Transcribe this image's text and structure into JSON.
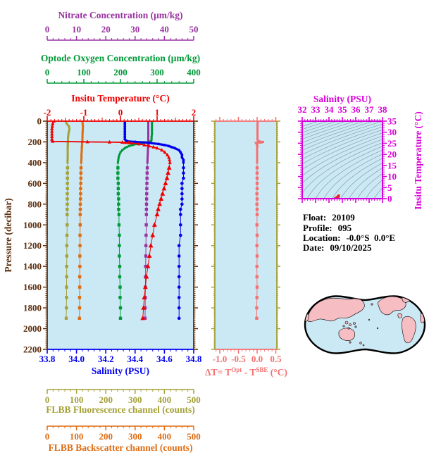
{
  "colors": {
    "background": "#FFFFFF",
    "plot_bg": "#CBE9F5",
    "nitrate": "#9933A0",
    "oxygen": "#009938",
    "temperature": "#EE0000",
    "pressure": "#5C2E0E",
    "salinity": "#0000EE",
    "fluorescence": "#A4A138",
    "backscatter": "#DE6C12",
    "delta_t": "#F57070",
    "ts_frame": "#D800D8",
    "ts_points": "#E02828",
    "contour": "#8A9CA8",
    "map_land": "#F6BDC3",
    "map_outline": "#000000",
    "info_text": "#000000"
  },
  "axes": {
    "nitrate": {
      "title": "Nitrate Concentration (μm/kg)",
      "min": 0,
      "max": 50,
      "ticks": [
        0,
        10,
        20,
        30,
        40,
        50
      ]
    },
    "oxygen": {
      "title": "Optode Oxygen Concentration (μm/kg)",
      "min": 0,
      "max": 400,
      "ticks": [
        0,
        100,
        200,
        300,
        400
      ]
    },
    "temperature": {
      "title": "Insitu Temperature (°C)",
      "min": -2,
      "max": 2,
      "ticks": [
        -2,
        -1,
        0,
        1,
        2
      ]
    },
    "pressure": {
      "title": "Pressure (decibar)",
      "min": 0,
      "max": 2200,
      "ticks": [
        0,
        200,
        400,
        600,
        800,
        1000,
        1200,
        1400,
        1600,
        1800,
        2000,
        2200
      ]
    },
    "salinity": {
      "title": "Salinity (PSU)",
      "min": 33.8,
      "max": 34.8,
      "ticks": [
        33.8,
        34.0,
        34.2,
        34.4,
        34.6,
        34.8
      ],
      "tick_labels": [
        "33.8",
        "34.0",
        "34.2",
        "34.4",
        "34.6",
        "34.8"
      ]
    },
    "fluorescence": {
      "title": "FLBB Fluorescence channel (counts)",
      "min": 0,
      "max": 500,
      "ticks": [
        0,
        100,
        200,
        300,
        400,
        500
      ]
    },
    "backscatter": {
      "title": "FLBB Backscatter channel (counts)",
      "min": 0,
      "max": 500,
      "ticks": [
        0,
        100,
        200,
        300,
        400,
        500
      ]
    },
    "delta_t": {
      "label_parts": [
        {
          "t": "ΔT= T"
        },
        {
          "t": "Opt",
          "sup": true
        },
        {
          "t": " - T"
        },
        {
          "t": "SBE",
          "sup": true
        },
        {
          "t": " (°C)"
        }
      ],
      "min": -1.132,
      "max": 0.528,
      "ticks": [
        -1.0,
        -0.5,
        0.0,
        0.5
      ],
      "tick_labels": [
        "-1.0",
        "-0.5",
        "0.0",
        "0.5"
      ]
    },
    "ts": {
      "title": "Salinity (PSU)",
      "ylabel": "Insitu Temperature (°C)",
      "s_min": 32,
      "s_max": 38,
      "s_ticks": [
        32,
        33,
        34,
        35,
        36,
        37,
        38
      ],
      "t_min": 0,
      "t_max": 35,
      "t_ticks": [
        0,
        5,
        10,
        15,
        20,
        25,
        30,
        35
      ]
    }
  },
  "info": {
    "rows": [
      {
        "label": "Float:",
        "value": "20109"
      },
      {
        "label": "Profile:",
        "value": "095"
      },
      {
        "label": "Location:",
        "value": "-0.0°S  0.0°E"
      },
      {
        "label": "Date:",
        "value": "09/10/2025"
      }
    ]
  },
  "chart_data": {
    "type": "line",
    "y_axis": {
      "label": "Pressure (decibar)",
      "range": [
        0,
        2200
      ],
      "direction": "downward"
    },
    "series": [
      {
        "name": "Insitu Temperature",
        "units": "°C",
        "x_axis": "temperature",
        "color": "#EE0000",
        "marker": "triangle",
        "p": [
          0,
          25,
          50,
          75,
          100,
          125,
          150,
          175,
          190,
          195,
          200,
          202,
          204,
          206,
          208,
          210,
          220,
          230,
          240,
          250,
          260,
          280,
          300,
          325,
          350,
          375,
          400,
          450,
          500,
          550,
          600,
          650,
          700,
          750,
          800,
          850,
          900,
          1000,
          1100,
          1200,
          1300,
          1400,
          1500,
          1600,
          1700,
          1800,
          1900
        ],
        "v": [
          -1.82,
          -1.85,
          -1.86,
          -1.87,
          -1.87,
          -1.87,
          -1.87,
          -1.87,
          -1.86,
          -1.85,
          -0.9,
          -0.3,
          0.05,
          0.13,
          0.22,
          0.3,
          0.5,
          0.65,
          0.78,
          0.9,
          1.0,
          1.13,
          1.21,
          1.28,
          1.32,
          1.34,
          1.35,
          1.33,
          1.3,
          1.27,
          1.23,
          1.19,
          1.15,
          1.11,
          1.07,
          1.03,
          1.0,
          0.93,
          0.88,
          0.83,
          0.79,
          0.75,
          0.71,
          0.68,
          0.65,
          0.63,
          0.61
        ]
      },
      {
        "name": "Salinity",
        "units": "PSU",
        "x_axis": "salinity",
        "color": "#0000EE",
        "marker": "circle",
        "p": [
          0,
          25,
          50,
          75,
          100,
          125,
          150,
          175,
          190,
          195,
          200,
          205,
          210,
          220,
          230,
          240,
          250,
          260,
          280,
          300,
          325,
          350,
          375,
          400,
          450,
          500,
          550,
          600,
          650,
          700,
          750,
          800,
          850,
          900,
          1000,
          1100,
          1200,
          1300,
          1400,
          1500,
          1600,
          1700,
          1800,
          1900
        ],
        "v": [
          34.33,
          34.33,
          34.33,
          34.33,
          34.33,
          34.33,
          34.33,
          34.33,
          34.34,
          34.35,
          34.4,
          34.46,
          34.5,
          34.56,
          34.6,
          34.63,
          34.65,
          34.67,
          34.7,
          34.71,
          34.72,
          34.72,
          34.73,
          34.73,
          34.73,
          34.73,
          34.73,
          34.72,
          34.72,
          34.72,
          34.72,
          34.72,
          34.71,
          34.71,
          34.71,
          34.71,
          34.7,
          34.7,
          34.7,
          34.7,
          34.7,
          34.7,
          34.7,
          34.7
        ]
      },
      {
        "name": "Optode Oxygen Concentration",
        "units": "μm/kg",
        "x_axis": "oxygen",
        "color": "#009938",
        "marker": "square",
        "p": [
          0,
          25,
          50,
          75,
          100,
          125,
          150,
          175,
          190,
          195,
          200,
          205,
          210,
          220,
          230,
          240,
          250,
          260,
          280,
          300,
          325,
          350,
          375,
          400,
          450,
          500,
          550,
          600,
          650,
          700,
          750,
          800,
          850,
          900,
          1000,
          1100,
          1200,
          1300,
          1400,
          1500,
          1600,
          1700,
          1800,
          1900
        ],
        "v": [
          286,
          286,
          286,
          286,
          286,
          286,
          285,
          285,
          284,
          283,
          278,
          268,
          258,
          244,
          233,
          224,
          217,
          212,
          205,
          200,
          197,
          195,
          194,
          193,
          193,
          193,
          193,
          194,
          194,
          194,
          195,
          195,
          195,
          196,
          196,
          197,
          197,
          197,
          198,
          198,
          199,
          199,
          200,
          200
        ]
      },
      {
        "name": "Nitrate Concentration",
        "units": "μm/kg",
        "x_axis": "nitrate",
        "color": "#9933A0",
        "marker": "square",
        "p": [
          0,
          25,
          50,
          75,
          100,
          125,
          150,
          175,
          190,
          195,
          200,
          205,
          210,
          220,
          230,
          240,
          250,
          260,
          280,
          300,
          325,
          350,
          375,
          400,
          450,
          500,
          550,
          600,
          650,
          700,
          750,
          800,
          850,
          900,
          1000,
          1100,
          1200,
          1300,
          1400,
          1500,
          1600,
          1700,
          1800,
          1900
        ],
        "v": [
          34.5,
          34.5,
          34.5,
          34.5,
          34.5,
          34.5,
          34.5,
          34.5,
          34.5,
          34.5,
          34.5,
          34.5,
          34.49,
          34.48,
          34.46,
          34.45,
          34.43,
          34.42,
          34.38,
          34.35,
          34.31,
          34.27,
          34.23,
          34.2,
          34.15,
          34.1,
          34.06,
          34.02,
          33.99,
          33.96,
          33.93,
          33.9,
          33.87,
          33.85,
          33.8,
          33.74,
          33.69,
          33.64,
          33.59,
          33.54,
          33.5,
          33.46,
          33.43,
          33.4
        ]
      },
      {
        "name": "FLBB Fluorescence channel",
        "units": "counts",
        "x_axis": "fluorescence",
        "color": "#A4A138",
        "marker": "square",
        "p": [
          0,
          25,
          50,
          75,
          100,
          125,
          150,
          175,
          190,
          195,
          200,
          205,
          210,
          220,
          230,
          240,
          250,
          260,
          280,
          300,
          325,
          350,
          375,
          400,
          450,
          500,
          550,
          600,
          650,
          700,
          750,
          800,
          850,
          900,
          1000,
          1100,
          1200,
          1300,
          1400,
          1500,
          1600,
          1700,
          1800,
          1900
        ],
        "v": [
          63,
          67,
          74,
          76,
          74,
          72.5,
          71.5,
          71,
          71,
          71,
          70.5,
          70.5,
          70.5,
          70.5,
          70.5,
          70,
          70,
          70,
          70,
          70,
          70,
          70,
          69.5,
          69.5,
          69.5,
          69,
          69,
          69,
          69,
          68.5,
          68.5,
          68.5,
          68,
          68,
          68,
          67.5,
          67,
          67,
          66.5,
          66.5,
          66,
          66,
          65.5,
          65
        ]
      },
      {
        "name": "FLBB Backscatter channel",
        "units": "counts",
        "x_axis": "backscatter",
        "color": "#DE6C12",
        "marker": "square",
        "p": [
          0,
          25,
          50,
          75,
          100,
          125,
          150,
          175,
          190,
          195,
          200,
          205,
          210,
          220,
          230,
          240,
          250,
          260,
          280,
          300,
          325,
          350,
          375,
          400,
          450,
          500,
          550,
          600,
          650,
          700,
          750,
          800,
          850,
          900,
          1000,
          1100,
          1200,
          1300,
          1400,
          1500,
          1600,
          1700,
          1800,
          1900
        ],
        "v": [
          120,
          121,
          122,
          121.5,
          121,
          120.5,
          120.5,
          120,
          120,
          120,
          119.5,
          119.5,
          119,
          119,
          119,
          118.5,
          118.5,
          118,
          118,
          117.5,
          117,
          117,
          116.5,
          116,
          115.5,
          115,
          115,
          114.5,
          114,
          114,
          113.5,
          113,
          113,
          112.5,
          112.5,
          112,
          112,
          111.5,
          111.5,
          111,
          111,
          110.5,
          110.5,
          110
        ]
      }
    ],
    "delta_series": {
      "name": "ΔT = TOpt - TSBE",
      "units": "°C",
      "color": "#F57070",
      "marker": "square",
      "p": [
        0,
        25,
        50,
        75,
        100,
        125,
        150,
        175,
        190,
        195,
        200,
        205,
        210,
        220,
        230,
        240,
        250,
        260,
        280,
        300,
        325,
        350,
        375,
        400,
        450,
        500,
        550,
        600,
        650,
        700,
        750,
        800,
        850,
        900,
        1000,
        1100,
        1200,
        1300,
        1400,
        1500,
        1600,
        1700,
        1800,
        1900
      ],
      "v": [
        0.02,
        0.01,
        0.01,
        0.01,
        0.01,
        0.01,
        0.01,
        0.01,
        0.02,
        0.06,
        0.16,
        0.12,
        -0.03,
        -0.01,
        0,
        0.01,
        0,
        0,
        0,
        0,
        0,
        0,
        0,
        0,
        0,
        0,
        0,
        0,
        0,
        -0.005,
        0,
        -0.005,
        0,
        0,
        -0.005,
        0,
        -0.005,
        0,
        -0.005,
        -0.005,
        0,
        -0.005,
        -0.01,
        -0.01
      ]
    },
    "ts_diagram": {
      "points": "salinity-vs-temperature pairs from the two profile series above",
      "sigma_theta_contours": {
        "min": 18.5,
        "max": 30,
        "step": 0.5
      }
    }
  }
}
